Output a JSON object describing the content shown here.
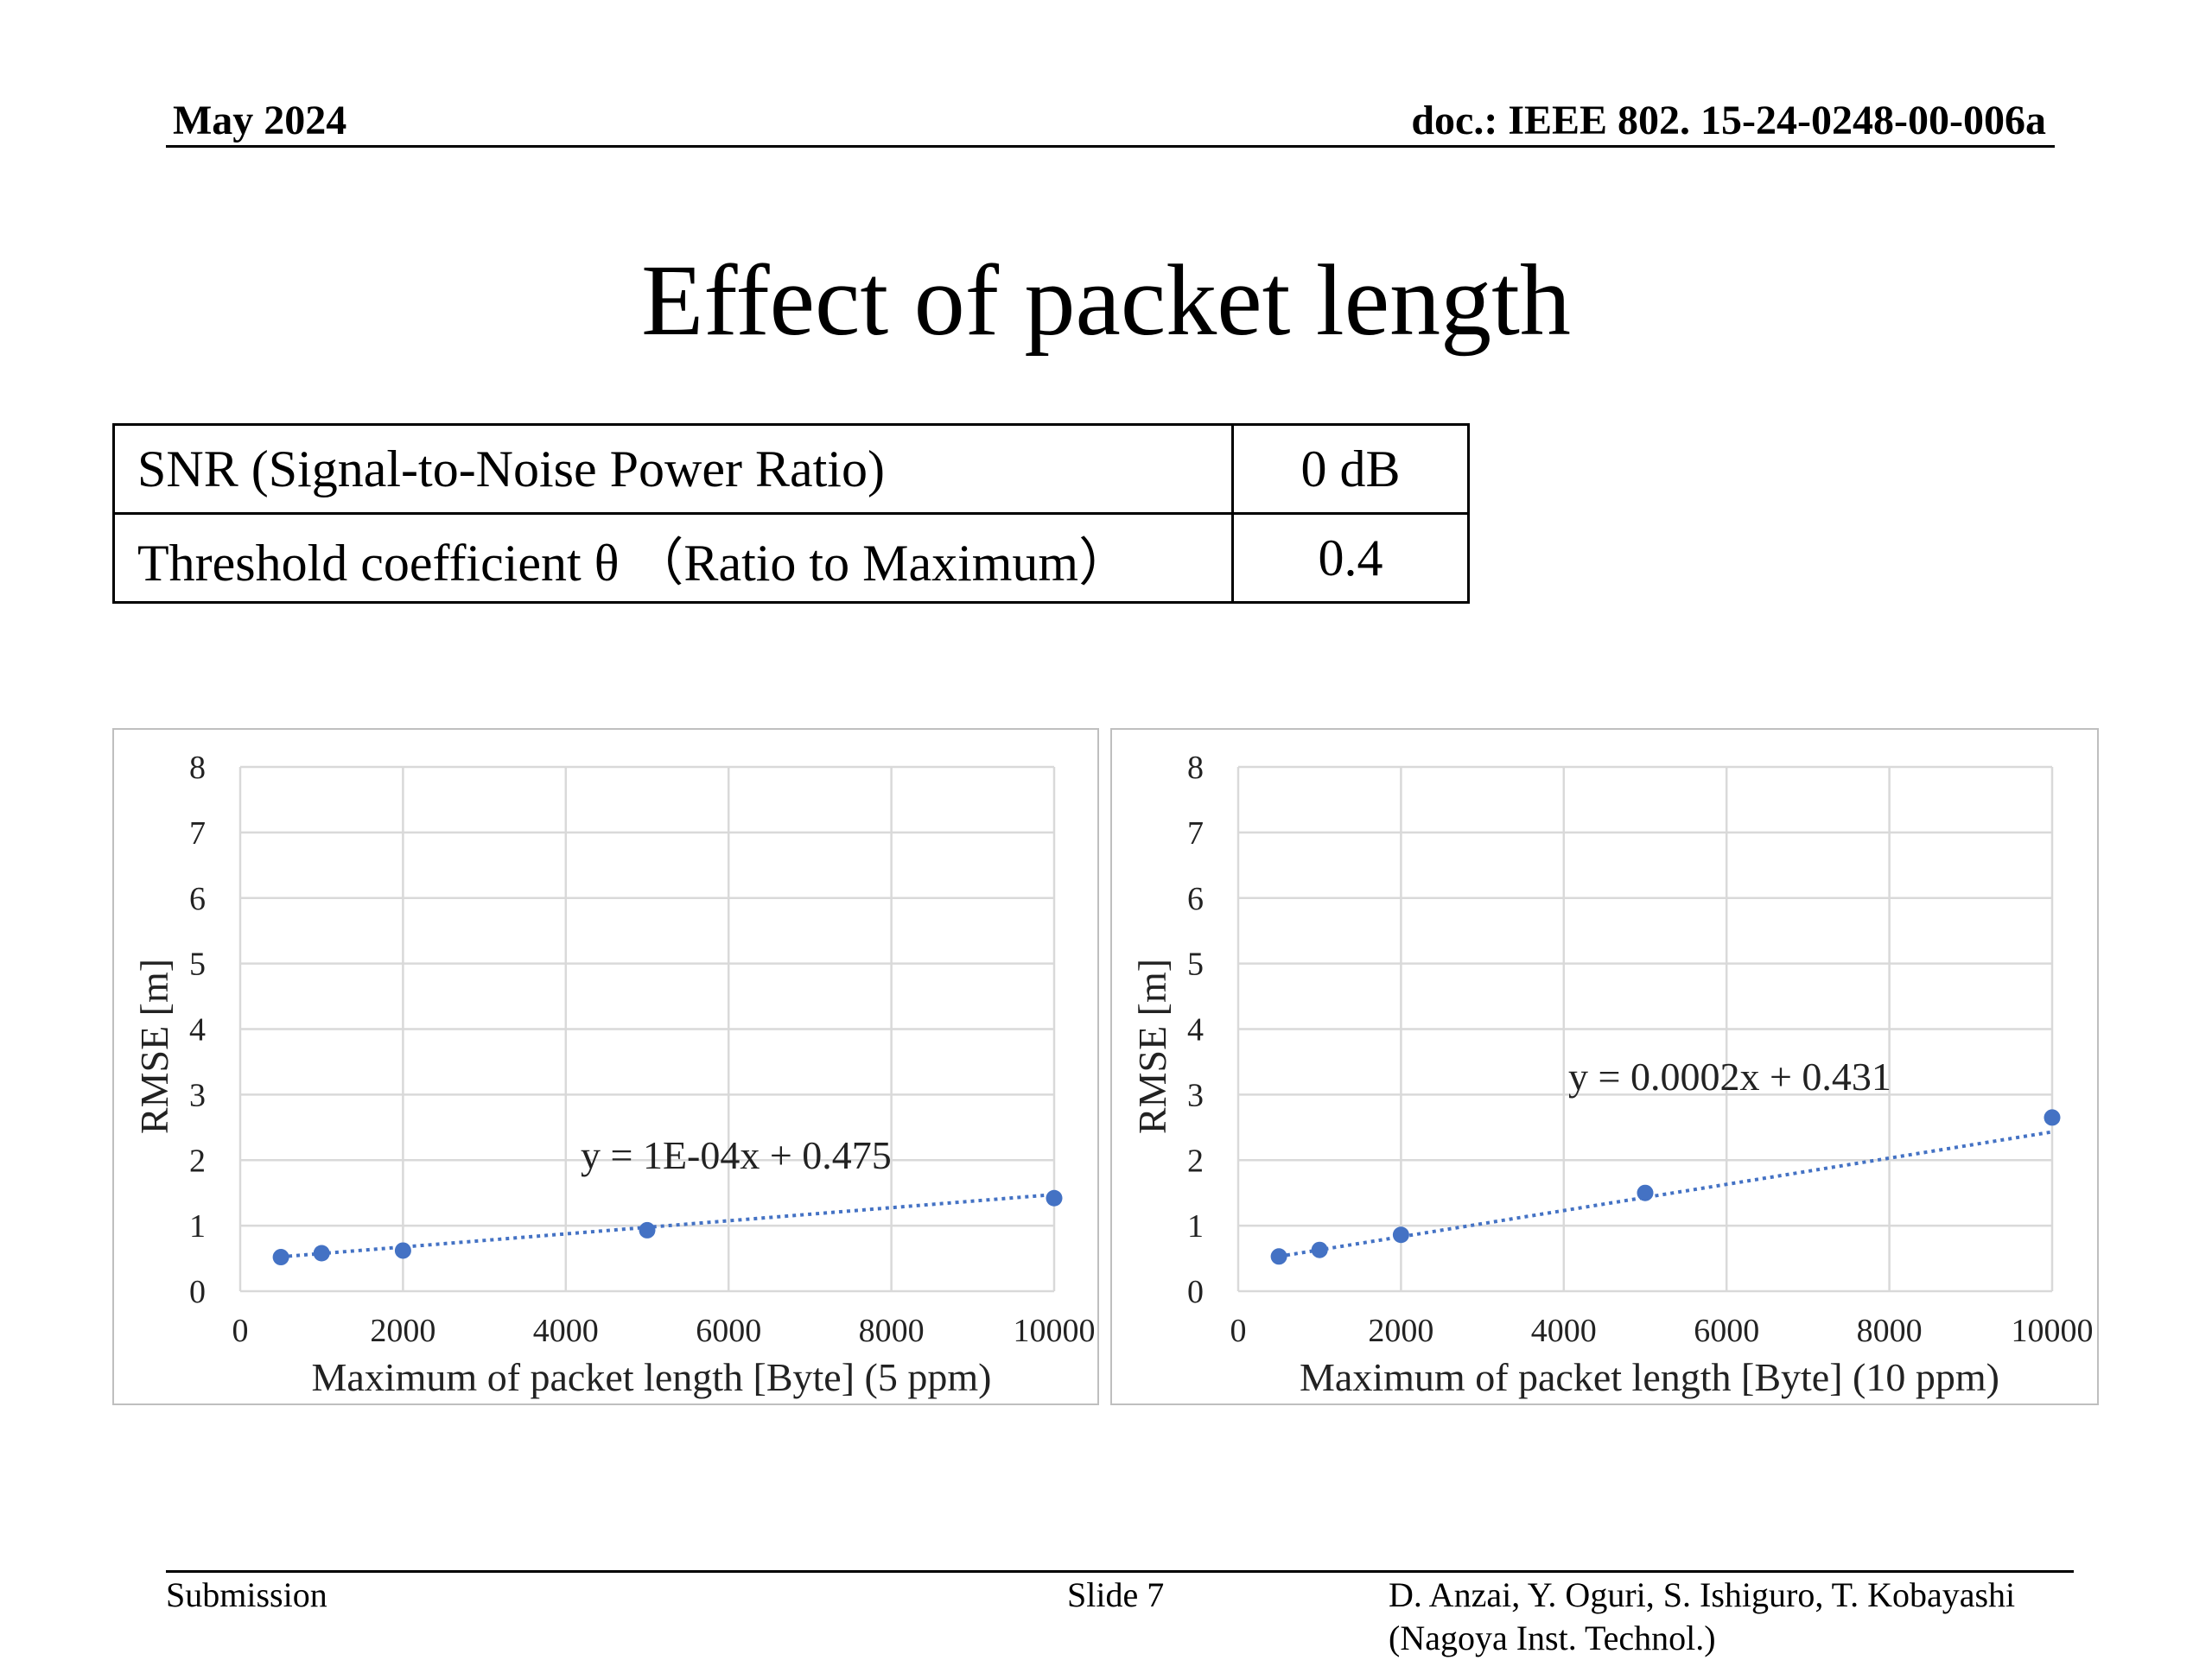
{
  "header": {
    "date": "May 2024",
    "doc": "doc.: IEEE 802. 15-24-0248-00-006a"
  },
  "title": "Effect of packet length",
  "params": [
    {
      "name": "SNR (Signal-to-Noise Power Ratio)",
      "value": "0 dB"
    },
    {
      "name": "Threshold coefficient θ （Ratio to Maximum）",
      "value": "0.4"
    }
  ],
  "chart_data": [
    {
      "type": "scatter",
      "x": [
        500,
        1000,
        2000,
        5000,
        10000
      ],
      "y": [
        0.52,
        0.58,
        0.62,
        0.93,
        1.42
      ],
      "xlabel": "Maximum  of packet  length  [Byte]  (5 ppm)",
      "ylabel": "RMSE [m]",
      "xlim": [
        0,
        10000
      ],
      "ylim": [
        0,
        8
      ],
      "xticks": [
        "0",
        "2000",
        "4000",
        "6000",
        "8000",
        "10000"
      ],
      "yticks": [
        "0",
        "1",
        "2",
        "3",
        "4",
        "5",
        "6",
        "7",
        "8"
      ],
      "trendline": {
        "equation": "y = 1E-04x  + 0.475",
        "slope": 0.0001,
        "intercept": 0.475
      },
      "grid": true,
      "color": "#4472c4"
    },
    {
      "type": "scatter",
      "x": [
        500,
        1000,
        2000,
        5000,
        10000
      ],
      "y": [
        0.53,
        0.63,
        0.86,
        1.5,
        2.65
      ],
      "xlabel": "Maximum  of packet  length  [Byte]  (10 ppm)",
      "ylabel": "RMSE [m]",
      "xlim": [
        0,
        10000
      ],
      "ylim": [
        0,
        8
      ],
      "xticks": [
        "0",
        "2000",
        "4000",
        "6000",
        "8000",
        "10000"
      ],
      "yticks": [
        "0",
        "1",
        "2",
        "3",
        "4",
        "5",
        "6",
        "7",
        "8"
      ],
      "trendline": {
        "equation": "y = 0.0002x  + 0.431",
        "slope": 0.0002,
        "intercept": 0.431
      },
      "grid": true,
      "color": "#4472c4"
    }
  ],
  "footer": {
    "left": "Submission",
    "center": "Slide 7",
    "authors": "D. Anzai, Y. Oguri, S. Ishiguro,  T. Kobayashi",
    "affiliation": "(Nagoya Inst. Technol.)"
  }
}
